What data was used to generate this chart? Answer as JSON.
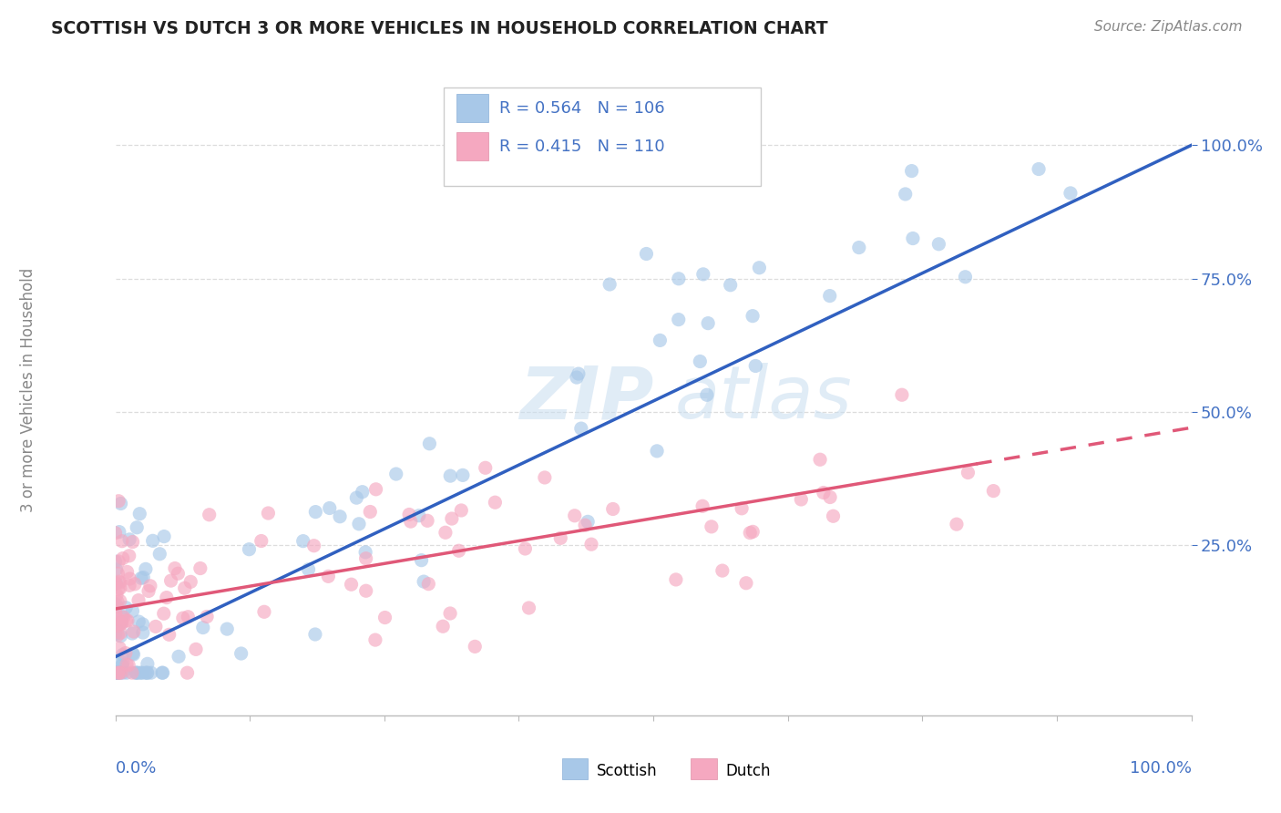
{
  "title": "SCOTTISH VS DUTCH 3 OR MORE VEHICLES IN HOUSEHOLD CORRELATION CHART",
  "source": "Source: ZipAtlas.com",
  "ylabel": "3 or more Vehicles in Household",
  "scottish_color": "#a8c8e8",
  "dutch_color": "#f5a8c0",
  "line_scottish": "#3060c0",
  "line_dutch": "#e05878",
  "watermark_color": "#c8ddf0",
  "scottish_R": 0.564,
  "scottish_N": 106,
  "dutch_R": 0.415,
  "dutch_N": 110,
  "scatter_alpha": 0.65,
  "scatter_size": 120,
  "title_color": "#222222",
  "source_color": "#888888",
  "axis_label_color": "#4472c4",
  "ylabel_color": "#888888",
  "grid_color": "#dddddd",
  "tick_color": "#4472c4",
  "legend_border_color": "#cccccc",
  "legend_text_color": "#4472c4"
}
